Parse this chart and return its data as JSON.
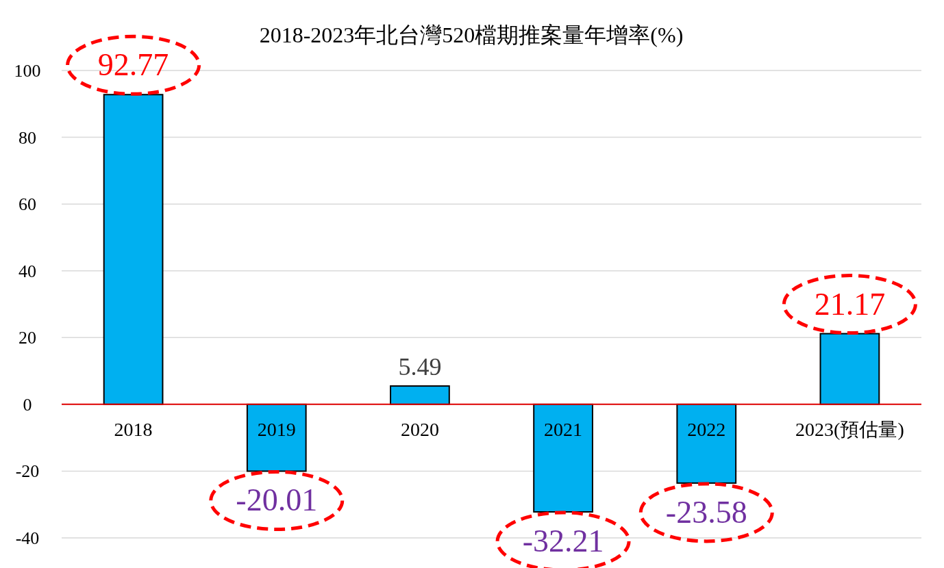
{
  "chart_data": {
    "type": "bar",
    "title": "2018-2023年北台灣520檔期推案量年增率(%)",
    "categories": [
      "2018",
      "2019",
      "2020",
      "2021",
      "2022",
      "2023(預估量)"
    ],
    "values": [
      92.77,
      -20.01,
      5.49,
      -32.21,
      -23.58,
      21.17
    ],
    "color": "#00b0f0",
    "ylim": [
      -40,
      100
    ],
    "yticks": [
      -40,
      -20,
      0,
      20,
      40,
      60,
      80,
      100
    ],
    "grid": "y",
    "data_labels": true
  }
}
